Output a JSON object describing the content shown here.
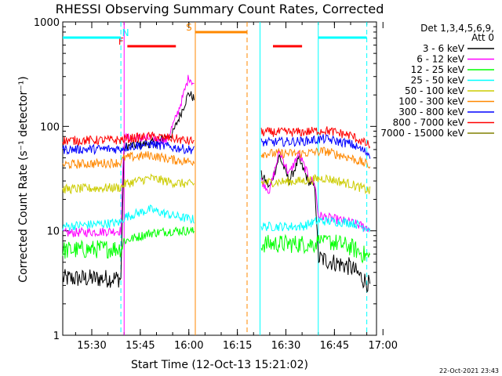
{
  "chart_data": {
    "type": "line",
    "title": "RHESSI Observing Summary Count Rates, Corrected",
    "xlabel": "Start Time (12-Oct-13 15:21:02)",
    "ylabel": "Corrected Count Rate (s⁻¹ detector⁻¹)",
    "y_scale": "log",
    "ylim": [
      1,
      1000
    ],
    "xlim": [
      "15:21:02",
      "16:58:00"
    ],
    "x_ticks": [
      "15:30",
      "15:45",
      "16:00",
      "16:15",
      "16:30",
      "16:45",
      "17:00"
    ],
    "y_ticks": [
      "1",
      "10",
      "100",
      "1000"
    ],
    "legend_header": [
      "Det 1,3,4,5,6,9,",
      "Att 0"
    ],
    "legend_position": "right",
    "timestamp": "22-Oct-2021 23:43",
    "data_gaps": [
      [
        "16:01:45",
        "16:22:20"
      ]
    ],
    "series": [
      {
        "name": "3 - 6 keV",
        "color": "#000000",
        "x": [
          "15:21:02",
          "15:39:00",
          "15:40:00",
          "15:50:00",
          "15:55:00",
          "15:58:00",
          "16:00:00",
          "16:22:30",
          "16:25:00",
          "16:28:00",
          "16:31:00",
          "16:34:00",
          "16:37:00",
          "16:39:00",
          "16:40:00",
          "16:50:00",
          "16:56:00"
        ],
        "y": [
          3.5,
          3.5,
          64,
          70,
          85,
          145,
          210,
          34,
          26,
          52,
          30,
          48,
          30,
          26,
          5.5,
          4.5,
          3
        ]
      },
      {
        "name": "6 - 12 keV",
        "color": "#ff00ff",
        "x": [
          "15:21:02",
          "15:39:00",
          "15:40:00",
          "15:50:00",
          "15:53:00",
          "15:56:00",
          "15:58:00",
          "16:00:00",
          "16:22:30",
          "16:25:00",
          "16:28:00",
          "16:31:00",
          "16:34:00",
          "16:37:00",
          "16:39:00",
          "16:40:00",
          "16:50:00",
          "16:56:00"
        ],
        "y": [
          9.5,
          10,
          78,
          76,
          72,
          120,
          185,
          300,
          30,
          24,
          58,
          35,
          55,
          33,
          28,
          14,
          12,
          10.5
        ]
      },
      {
        "name": "12 - 25 keV",
        "color": "#00ff00",
        "x": [
          "15:21:02",
          "15:39:00",
          "15:40:00",
          "15:48:00",
          "15:55:00",
          "16:00:00",
          "16:22:30",
          "16:35:00",
          "16:39:00",
          "16:40:00",
          "16:50:00",
          "16:56:00"
        ],
        "y": [
          6.5,
          6.8,
          8,
          9.5,
          10,
          10,
          7.5,
          7.5,
          7.5,
          8.5,
          7,
          5.5
        ]
      },
      {
        "name": "25 - 50 keV",
        "color": "#00ffff",
        "x": [
          "15:21:02",
          "15:39:00",
          "15:40:00",
          "15:48:00",
          "15:55:00",
          "16:00:00",
          "16:22:30",
          "16:35:00",
          "16:40:00",
          "16:50:00",
          "16:56:00"
        ],
        "y": [
          11,
          12,
          13.5,
          16,
          14,
          13,
          11,
          11,
          12.5,
          12,
          10.5
        ]
      },
      {
        "name": "50 - 100 keV",
        "color": "#cccc00",
        "x": [
          "15:21:02",
          "15:39:00",
          "15:40:00",
          "15:48:00",
          "15:55:00",
          "16:00:00",
          "16:22:30",
          "16:35:00",
          "16:42:00",
          "16:50:00",
          "16:56:00"
        ],
        "y": [
          25,
          26,
          28,
          32,
          29,
          28,
          29,
          30,
          32,
          28,
          24
        ]
      },
      {
        "name": "100 - 300 keV",
        "color": "#ff8800",
        "x": [
          "15:21:02",
          "15:39:00",
          "15:40:00",
          "15:48:00",
          "15:55:00",
          "16:00:00",
          "16:22:30",
          "16:35:00",
          "16:42:00",
          "16:50:00",
          "16:56:00"
        ],
        "y": [
          43,
          45,
          50,
          53,
          48,
          46,
          55,
          55,
          58,
          50,
          42
        ]
      },
      {
        "name": "300 - 800 keV",
        "color": "#0000ff",
        "x": [
          "15:21:02",
          "15:39:00",
          "15:40:00",
          "15:48:00",
          "15:55:00",
          "16:00:00",
          "16:22:30",
          "16:35:00",
          "16:42:00",
          "16:50:00",
          "16:56:00"
        ],
        "y": [
          60,
          61,
          63,
          68,
          63,
          60,
          70,
          72,
          76,
          68,
          54
        ]
      },
      {
        "name": "800 - 7000 keV",
        "color": "#ff0000",
        "x": [
          "15:21:02",
          "15:39:00",
          "15:40:00",
          "15:48:00",
          "15:55:00",
          "16:00:00",
          "16:22:30",
          "16:35:00",
          "16:42:00",
          "16:50:00",
          "16:56:00"
        ],
        "y": [
          73,
          74,
          76,
          80,
          77,
          72,
          88,
          88,
          92,
          82,
          65
        ]
      },
      {
        "name": "7000 - 15000 keV",
        "color": "#808000",
        "x": [],
        "y": []
      }
    ],
    "flags": [
      {
        "label": "F",
        "color": "#ff0000",
        "intervals": [
          [
            "15:41:00",
            "15:56:00"
          ],
          [
            "16:26:00",
            "16:35:00"
          ]
        ]
      },
      {
        "label": "N",
        "color": "#00ffff",
        "intervals": [
          [
            "15:21:02",
            "15:39:00"
          ],
          [
            "16:40:00",
            "16:55:00"
          ]
        ]
      },
      {
        "label": "S",
        "color": "#ff8800",
        "intervals": [
          [
            "16:02:00",
            "16:18:00"
          ]
        ]
      }
    ],
    "markers": [
      {
        "time": "15:39:00",
        "color": "#00ffff",
        "style": "dashed"
      },
      {
        "time": "15:40:00",
        "color": "#ff00ff",
        "style": "solid"
      },
      {
        "time": "16:02:00",
        "color": "#ff8800",
        "style": "solid"
      },
      {
        "time": "16:18:00",
        "color": "#ff8800",
        "style": "dashed"
      },
      {
        "time": "16:22:00",
        "color": "#00ffff",
        "style": "solid"
      },
      {
        "time": "16:40:00",
        "color": "#00ffff",
        "style": "solid"
      },
      {
        "time": "16:55:00",
        "color": "#00ffff",
        "style": "dashed"
      }
    ]
  }
}
